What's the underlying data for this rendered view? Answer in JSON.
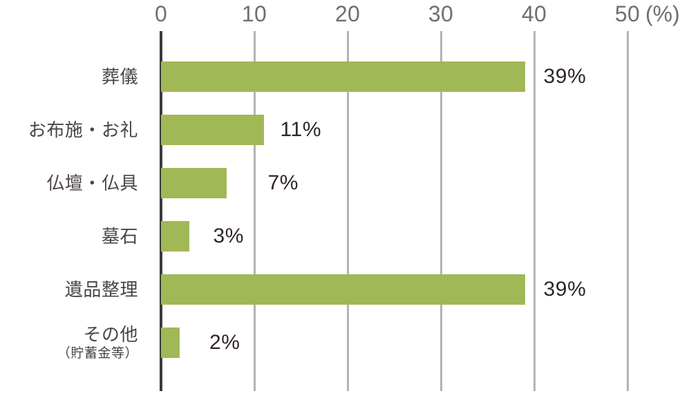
{
  "chart_data": {
    "type": "bar",
    "orientation": "horizontal",
    "title": "",
    "unit_label": "(%)",
    "x_ticks": [
      0,
      10,
      20,
      30,
      40,
      50
    ],
    "xlim": [
      0,
      56
    ],
    "grid": true,
    "categories": [
      "葬儀",
      "お布施・お礼",
      "仏壇・仏具",
      "墓石",
      "遺品整理",
      "その他"
    ],
    "category_sublabels": [
      "",
      "",
      "",
      "",
      "",
      "（貯蓄金等）"
    ],
    "values": [
      39,
      11,
      7,
      3,
      39,
      2
    ],
    "value_labels": [
      "39%",
      "11%",
      "7%",
      "3%",
      "39%",
      "2%"
    ],
    "colors": {
      "bar": "#a0b855",
      "axis": "#3b3b3b",
      "gridline": "#b3b3b3",
      "tick_text": "#6f6f6f",
      "category_text": "#4b4444",
      "value_text": "#2f2724"
    }
  }
}
